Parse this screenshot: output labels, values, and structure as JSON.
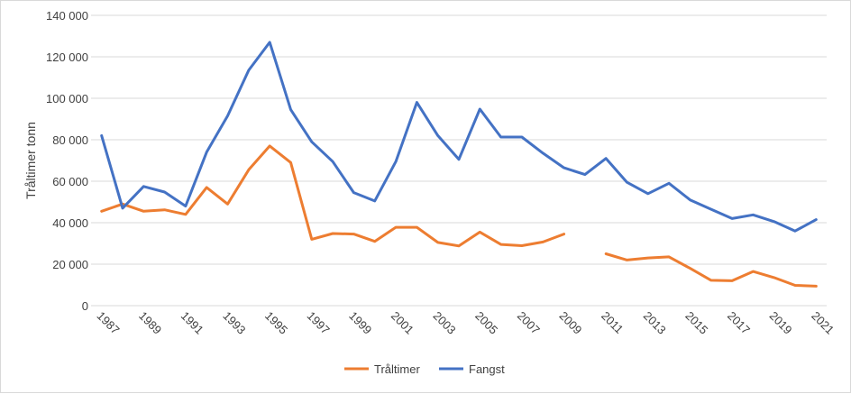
{
  "chart_data": {
    "type": "line",
    "title": "",
    "xlabel": "",
    "ylabel": "Tråltimer tonn",
    "ylim": [
      0,
      140000
    ],
    "yticks": [
      0,
      20000,
      40000,
      60000,
      80000,
      100000,
      120000,
      140000
    ],
    "ytick_labels": [
      "0",
      "20 000",
      "40 000",
      "60 000",
      "80 000",
      "100 000",
      "120 000",
      "140 000"
    ],
    "x": [
      1987,
      1988,
      1989,
      1990,
      1991,
      1992,
      1993,
      1994,
      1995,
      1996,
      1997,
      1998,
      1999,
      2000,
      2001,
      2002,
      2003,
      2004,
      2005,
      2006,
      2007,
      2008,
      2009,
      2010,
      2011,
      2012,
      2013,
      2014,
      2015,
      2016,
      2017,
      2018,
      2019,
      2020,
      2021
    ],
    "xtick_labels": [
      "1987",
      "1989",
      "1991",
      "1993",
      "1995",
      "1997",
      "1999",
      "2001",
      "2003",
      "2005",
      "2007",
      "2009",
      "2011",
      "2013",
      "2015",
      "2017",
      "2019",
      "2021"
    ],
    "grid": true,
    "legend_position": "bottom",
    "series": [
      {
        "name": "Tråltimer",
        "color": "#ED7D31",
        "values": [
          45500,
          49000,
          45500,
          46200,
          44000,
          57000,
          49000,
          65500,
          77000,
          69000,
          32000,
          34800,
          34500,
          31000,
          37800,
          37800,
          30500,
          28800,
          35500,
          29500,
          28900,
          30700,
          34500,
          null,
          25000,
          22000,
          23000,
          23500,
          18000,
          12200,
          12000,
          16500,
          13500,
          9800,
          9400
        ]
      },
      {
        "name": "Fangst",
        "color": "#4472C4",
        "values": [
          82000,
          47000,
          57500,
          54800,
          48000,
          74000,
          91500,
          113500,
          127000,
          94500,
          79000,
          69500,
          54500,
          50500,
          69500,
          98000,
          82000,
          70500,
          94800,
          81300,
          81300,
          73500,
          66500,
          63200,
          71000,
          59500,
          54000,
          59000,
          51000,
          46500,
          42000,
          43800,
          40500,
          36000,
          41500
        ]
      }
    ]
  }
}
